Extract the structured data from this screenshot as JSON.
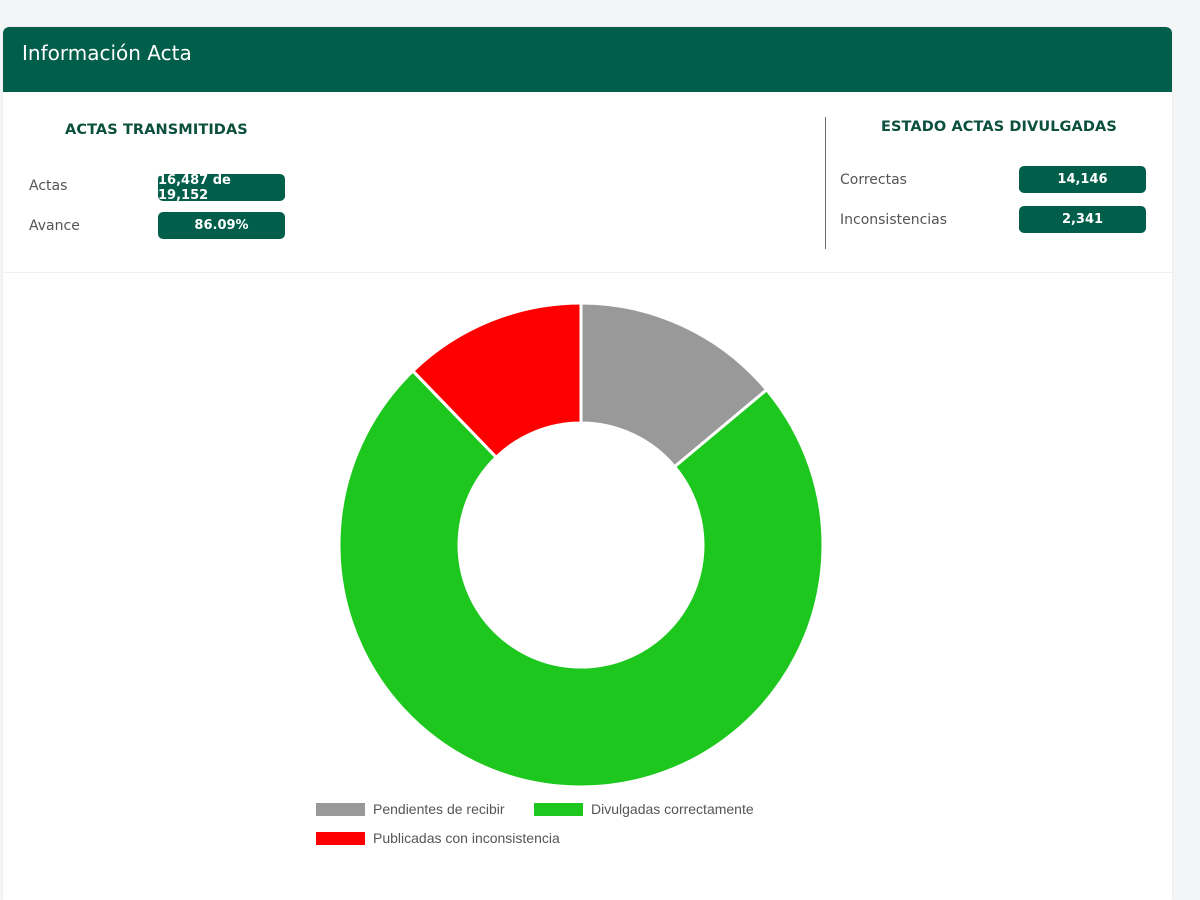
{
  "header": {
    "title": "Información Acta"
  },
  "transmitidas": {
    "title": "ACTAS TRANSMITIDAS",
    "rows": [
      {
        "label": "Actas",
        "value": "16,487 de 19,152"
      },
      {
        "label": "Avance",
        "value": "86.09%"
      }
    ]
  },
  "divulgadas": {
    "title": "ESTADO ACTAS DIVULGADAS",
    "rows": [
      {
        "label": "Correctas",
        "value": "14,146"
      },
      {
        "label": "Inconsistencias",
        "value": "2,341"
      }
    ]
  },
  "colors": {
    "brand": "#005e4a",
    "pendientes": "#999999",
    "correctas": "#1ec71e",
    "inconsistencia": "#ff0000"
  },
  "chart_data": {
    "type": "pie",
    "subtype": "donut",
    "title": "",
    "slices": [
      {
        "name": "Pendientes de recibir",
        "value": 2665,
        "color": "#999999"
      },
      {
        "name": "Divulgadas correctamente",
        "value": 14146,
        "color": "#1ec71e"
      },
      {
        "name": "Publicadas con inconsistencia",
        "value": 2341,
        "color": "#ff0000"
      }
    ],
    "start_angle_deg": 0,
    "direction": "clockwise",
    "legend_position": "bottom"
  }
}
